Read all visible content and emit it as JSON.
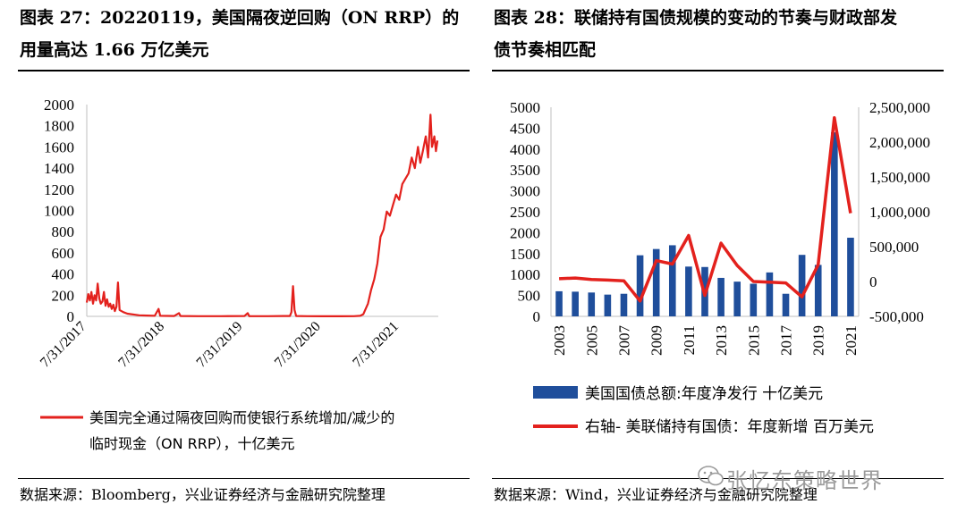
{
  "left": {
    "title_line1": "图表 27：20220119，美国隔夜逆回购（ON RRP）的",
    "title_line2": "用量高达 1.66 万亿美元",
    "source": "数据来源：Bloomberg，兴业证券经济与金融研究院整理",
    "chart_data": {
      "type": "line",
      "title": "美国隔夜逆回购（ON RRP）",
      "ylim": [
        0,
        2000
      ],
      "yticks": [
        0,
        200,
        400,
        600,
        800,
        1000,
        1200,
        1400,
        1600,
        1800,
        2000
      ],
      "xlim": [
        2017.58,
        2022.08
      ],
      "xticks": [
        {
          "v": 2017.58,
          "label": "7/31/2017"
        },
        {
          "v": 2018.58,
          "label": "7/31/2018"
        },
        {
          "v": 2019.58,
          "label": "7/31/2019"
        },
        {
          "v": 2020.58,
          "label": "7/31/2020"
        },
        {
          "v": 2021.58,
          "label": "7/31/2021"
        }
      ],
      "legend_line1": "美国完全通过隔夜回购而使银行系统增加/减少的",
      "legend_line2": "临时现金（ON RRP），十亿美元",
      "color": "#e3211d",
      "series": [
        [
          2017.58,
          130
        ],
        [
          2017.6,
          210
        ],
        [
          2017.62,
          150
        ],
        [
          2017.64,
          230
        ],
        [
          2017.66,
          120
        ],
        [
          2017.68,
          200
        ],
        [
          2017.7,
          150
        ],
        [
          2017.72,
          310
        ],
        [
          2017.74,
          170
        ],
        [
          2017.76,
          120
        ],
        [
          2017.78,
          140
        ],
        [
          2017.8,
          230
        ],
        [
          2017.82,
          100
        ],
        [
          2017.84,
          160
        ],
        [
          2017.86,
          90
        ],
        [
          2017.88,
          120
        ],
        [
          2017.9,
          70
        ],
        [
          2017.92,
          110
        ],
        [
          2017.94,
          50
        ],
        [
          2017.96,
          90
        ],
        [
          2017.98,
          320
        ],
        [
          2018.0,
          60
        ],
        [
          2018.05,
          40
        ],
        [
          2018.1,
          25
        ],
        [
          2018.15,
          20
        ],
        [
          2018.2,
          15
        ],
        [
          2018.25,
          10
        ],
        [
          2018.35,
          8
        ],
        [
          2018.45,
          5
        ],
        [
          2018.5,
          70
        ],
        [
          2018.52,
          5
        ],
        [
          2018.7,
          3
        ],
        [
          2018.76,
          30
        ],
        [
          2018.78,
          3
        ],
        [
          2019.0,
          2
        ],
        [
          2019.3,
          2
        ],
        [
          2019.6,
          3
        ],
        [
          2019.64,
          30
        ],
        [
          2019.66,
          2
        ],
        [
          2019.9,
          2
        ],
        [
          2020.1,
          3
        ],
        [
          2020.18,
          3
        ],
        [
          2020.2,
          40
        ],
        [
          2020.22,
          285
        ],
        [
          2020.24,
          60
        ],
        [
          2020.26,
          3
        ],
        [
          2020.4,
          2
        ],
        [
          2020.6,
          1
        ],
        [
          2020.8,
          1
        ],
        [
          2021.0,
          2
        ],
        [
          2021.08,
          5
        ],
        [
          2021.12,
          20
        ],
        [
          2021.18,
          120
        ],
        [
          2021.22,
          250
        ],
        [
          2021.26,
          350
        ],
        [
          2021.3,
          500
        ],
        [
          2021.34,
          750
        ],
        [
          2021.38,
          820
        ],
        [
          2021.42,
          990
        ],
        [
          2021.46,
          950
        ],
        [
          2021.5,
          1050
        ],
        [
          2021.54,
          1150
        ],
        [
          2021.58,
          1100
        ],
        [
          2021.62,
          1250
        ],
        [
          2021.66,
          1300
        ],
        [
          2021.7,
          1350
        ],
        [
          2021.74,
          1500
        ],
        [
          2021.78,
          1400
        ],
        [
          2021.82,
          1600
        ],
        [
          2021.85,
          1450
        ],
        [
          2021.88,
          1550
        ],
        [
          2021.92,
          1700
        ],
        [
          2021.95,
          1500
        ],
        [
          2021.98,
          1905
        ],
        [
          2022.0,
          1600
        ],
        [
          2022.03,
          1700
        ],
        [
          2022.05,
          1560
        ],
        [
          2022.07,
          1660
        ]
      ]
    }
  },
  "right": {
    "title_line1": "图表 28：联储持有国债规模的变动的节奏与财政部发",
    "title_line2": "债节奏相匹配",
    "source": "数据来源：Wind，兴业证券经济与金融研究院整理",
    "chart_data": {
      "type": "bar+line",
      "categories": [
        "2003",
        "2004",
        "2005",
        "2006",
        "2007",
        "2008",
        "2009",
        "2010",
        "2011",
        "2012",
        "2013",
        "2014",
        "2015",
        "2016",
        "2017",
        "2018",
        "2019",
        "2020",
        "2021"
      ],
      "xtick_labels": [
        "2003",
        "2005",
        "2007",
        "2009",
        "2011",
        "2013",
        "2015",
        "2017",
        "2019",
        "2021"
      ],
      "ylim_left": [
        0,
        5000
      ],
      "yticks_left": [
        0,
        500,
        1000,
        1500,
        2000,
        2500,
        3000,
        3500,
        4000,
        4500,
        5000
      ],
      "ylim_right": [
        -500000,
        2500000
      ],
      "yticks_right": [
        "-500,000",
        "0",
        "500,000",
        "1,000,000",
        "1,500,000",
        "2,000,000",
        "2,500,000"
      ],
      "yticks_right_values": [
        -500000,
        0,
        500000,
        1000000,
        1500000,
        2000000,
        2500000
      ],
      "series": [
        {
          "name": "美国国债总额:年度净发行 十亿美元",
          "type": "bar",
          "axis": "left",
          "color": "#1f4e9b",
          "values": [
            600,
            590,
            570,
            520,
            540,
            1460,
            1610,
            1700,
            1190,
            1180,
            920,
            830,
            780,
            1050,
            540,
            1470,
            1230,
            4400,
            1880
          ]
        },
        {
          "name": "右轴- 美联储持有国债：年度新增 百万美元",
          "type": "line",
          "axis": "right",
          "color": "#e3211d",
          "values": [
            40000,
            50000,
            30000,
            20000,
            10000,
            -280000,
            300000,
            250000,
            660000,
            -200000,
            550000,
            230000,
            0,
            -10000,
            -20000,
            -220000,
            240000,
            2350000,
            980000
          ]
        }
      ]
    }
  },
  "watermark": "张忆东策略世界"
}
